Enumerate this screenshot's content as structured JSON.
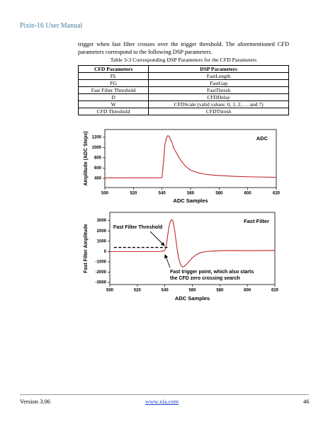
{
  "header": {
    "title": "Pixie-16 User Manual"
  },
  "paragraph": "trigger when fast filter crosses over the trigger threshold. The aforementioned CFD parameters correspond to the following DSP parameters.",
  "table": {
    "caption": "Table 3-3  Corresponding DSP Parameters for the CFD Parameters",
    "header": [
      "CFD Parameters",
      "DSP Parameters"
    ],
    "rows": [
      [
        "FL",
        "FastLength"
      ],
      [
        "FG",
        "FastGap"
      ],
      [
        "Fast Filter Threshold",
        "FastThresh"
      ],
      [
        "D",
        "CFDDelay"
      ],
      [
        "W",
        "CFDScale (valid values: 0, 1, 2, … and 7)"
      ],
      [
        "CFD Threshold",
        "CFDThresh"
      ]
    ]
  },
  "chart_data": [
    {
      "type": "line",
      "title": "ADC",
      "x_label": "ADC Samples",
      "y_label": "Amplitude (ADC Steps)",
      "color": "#c0282a",
      "x": [
        500,
        505,
        510,
        515,
        520,
        525,
        530,
        535,
        538,
        540,
        541,
        542,
        543,
        544,
        545,
        546,
        547,
        548,
        550,
        552,
        554,
        556,
        558,
        560,
        565,
        570,
        575,
        580,
        590,
        600,
        610,
        620
      ],
      "values": [
        410,
        410,
        408,
        410,
        410,
        410,
        410,
        410,
        412,
        415,
        700,
        1050,
        1180,
        1230,
        1220,
        1150,
        1100,
        1000,
        900,
        800,
        720,
        650,
        600,
        560,
        510,
        480,
        465,
        455,
        440,
        430,
        425,
        420
      ],
      "xlim": [
        500,
        620
      ],
      "xticks": [
        500,
        520,
        540,
        560,
        580,
        600,
        620
      ],
      "ylim": [
        220,
        1350
      ],
      "yticks": [
        400,
        600,
        800,
        1000,
        1200
      ]
    },
    {
      "type": "line",
      "title": "Fast Filter",
      "x_label": "ADC Samples",
      "y_label": "Fast Filter Amplitude",
      "color": "#c0282a",
      "x": [
        500,
        510,
        520,
        530,
        535,
        538,
        540,
        541,
        542,
        543,
        544,
        545,
        546,
        547,
        548,
        549,
        550,
        551,
        552,
        553,
        554,
        556,
        558,
        560,
        563,
        566,
        570,
        575,
        580,
        590,
        600,
        610,
        620
      ],
      "values": [
        0,
        0,
        0,
        0,
        0,
        20,
        100,
        500,
        1500,
        2400,
        2900,
        3100,
        2900,
        2200,
        1200,
        200,
        -600,
        -1100,
        -1400,
        -1500,
        -1450,
        -1200,
        -900,
        -600,
        -300,
        -100,
        0,
        50,
        80,
        100,
        80,
        100,
        100
      ],
      "xlim": [
        500,
        620
      ],
      "xticks": [
        500,
        520,
        540,
        560,
        580,
        600,
        620
      ],
      "ylim": [
        -3200,
        3800
      ],
      "yticks": [
        -3000,
        -2000,
        -1000,
        0,
        1000,
        2000,
        3000
      ],
      "threshold_line": {
        "x": [
          503,
          542
        ],
        "y": 400
      },
      "annotations": [
        "Fast Filter Threshold",
        "Fast trigger point, which also starts",
        "the CFD zero crossing search"
      ]
    }
  ],
  "footer": {
    "version": "Version 3.06",
    "url": "www.xia.com",
    "page": "46"
  }
}
